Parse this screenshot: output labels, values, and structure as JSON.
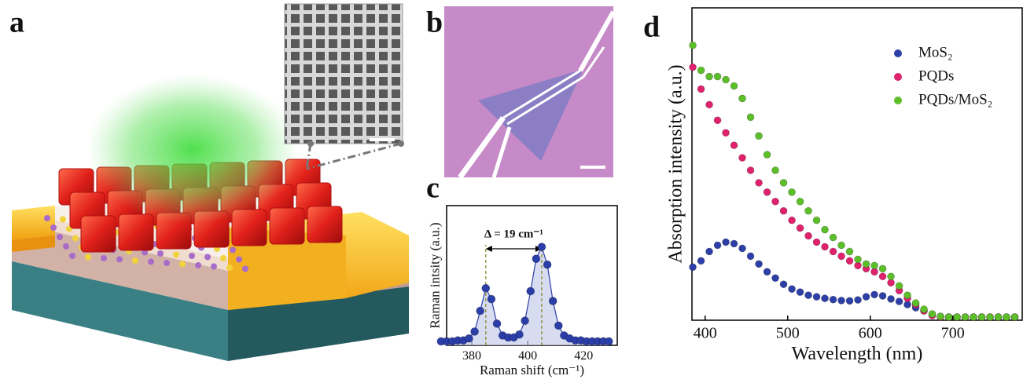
{
  "panel_labels": [
    "a",
    "b",
    "c",
    "d"
  ],
  "chart_data": [
    {
      "type": "line",
      "x": [
        369,
        371,
        373,
        375,
        377,
        379,
        381,
        383,
        385,
        387,
        389,
        391,
        393,
        395,
        397,
        399,
        401,
        403,
        405,
        407,
        409,
        411,
        413,
        415,
        417,
        419,
        421,
        423,
        425,
        427,
        429
      ],
      "values": [
        0.04,
        0.04,
        0.04,
        0.05,
        0.05,
        0.07,
        0.14,
        0.35,
        0.58,
        0.47,
        0.22,
        0.1,
        0.08,
        0.08,
        0.11,
        0.25,
        0.55,
        0.88,
        1.0,
        0.82,
        0.45,
        0.2,
        0.1,
        0.07,
        0.05,
        0.05,
        0.04,
        0.04,
        0.04,
        0.04,
        0.04
      ],
      "color": "#2b3ea8",
      "fill_color": "#c6cdeb",
      "xlim": [
        371,
        432
      ],
      "ylim": [
        0,
        1.42
      ],
      "xticks": [
        380,
        400,
        420
      ],
      "vlines": [
        385,
        405
      ],
      "annotation": "Δ = 19 cm⁻¹",
      "x_label": "Raman shift (cm⁻¹)",
      "y_label": "Raman intsity (a.u.)"
    },
    {
      "type": "scatter",
      "x": [
        385,
        395,
        405,
        415,
        425,
        435,
        445,
        455,
        465,
        475,
        485,
        495,
        505,
        515,
        525,
        535,
        545,
        555,
        565,
        575,
        585,
        595,
        605,
        615,
        625,
        635,
        645,
        655,
        665,
        675,
        685,
        695,
        705,
        715,
        725,
        735,
        745,
        755,
        765,
        775
      ],
      "series": [
        {
          "name": "MoS₂",
          "color": "#2e3fa8",
          "values": [
            0.17,
            0.19,
            0.22,
            0.24,
            0.25,
            0.245,
            0.23,
            0.205,
            0.18,
            0.155,
            0.135,
            0.115,
            0.1,
            0.09,
            0.08,
            0.075,
            0.07,
            0.066,
            0.063,
            0.062,
            0.065,
            0.075,
            0.082,
            0.078,
            0.068,
            0.06,
            0.05,
            0.04,
            0.03,
            0.018,
            0.012,
            0.01,
            0.01,
            0.01,
            0.01,
            0.01,
            0.01,
            0.01,
            0.01,
            0.01
          ]
        },
        {
          "name": "PQDs",
          "color": "#e0226e",
          "values": [
            0.81,
            0.74,
            0.69,
            0.64,
            0.6,
            0.56,
            0.52,
            0.48,
            0.44,
            0.41,
            0.38,
            0.35,
            0.32,
            0.295,
            0.27,
            0.25,
            0.235,
            0.22,
            0.205,
            0.19,
            0.175,
            0.165,
            0.155,
            0.14,
            0.12,
            0.095,
            0.07,
            0.05,
            0.03,
            0.015,
            0.01,
            0.01,
            0.01,
            0.01,
            0.01,
            0.01,
            0.01,
            0.01,
            0.01,
            0.01
          ]
        },
        {
          "name": "PQDs/MoS₂",
          "color": "#5cbf2a",
          "values": [
            0.88,
            0.8,
            0.78,
            0.78,
            0.77,
            0.75,
            0.71,
            0.65,
            0.59,
            0.53,
            0.48,
            0.44,
            0.41,
            0.38,
            0.35,
            0.32,
            0.29,
            0.265,
            0.24,
            0.22,
            0.195,
            0.18,
            0.175,
            0.165,
            0.14,
            0.11,
            0.08,
            0.055,
            0.035,
            0.02,
            0.012,
            0.01,
            0.01,
            0.01,
            0.01,
            0.01,
            0.01,
            0.01,
            0.01,
            0.01
          ]
        }
      ],
      "xlim": [
        384,
        784
      ],
      "ylim": [
        0,
        1
      ],
      "xticks": [
        400,
        500,
        600,
        700
      ],
      "x_label": "Wavelength (nm)",
      "y_label": "Absorption intensity (a.u.)"
    }
  ]
}
